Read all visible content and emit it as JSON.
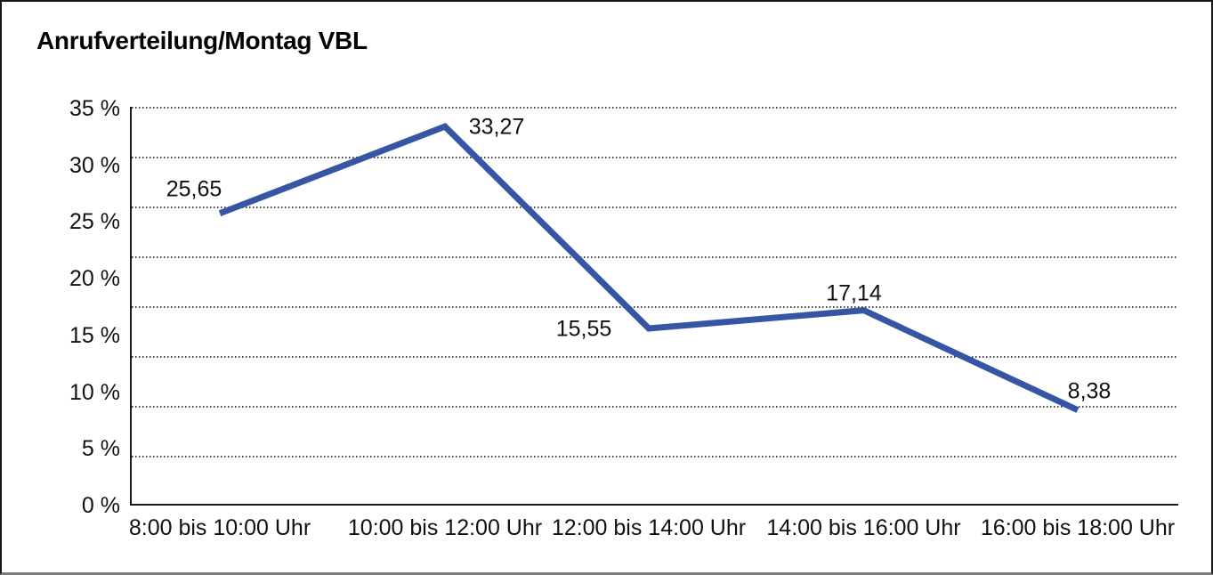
{
  "chart_data": {
    "type": "line",
    "title": "Anrufverteilung/Montag VBL",
    "categories": [
      "8:00 bis 10:00 Uhr",
      "10:00 bis 12:00 Uhr",
      "12:00 bis 14:00 Uhr",
      "14:00 bis 16:00 Uhr",
      "16:00 bis 18:00 Uhr"
    ],
    "values": [
      25.65,
      33.27,
      15.55,
      17.14,
      8.38
    ],
    "point_labels": [
      "25,65",
      "33,27",
      "15,55",
      "17,14",
      "8,38"
    ],
    "yticks": [
      "35 %",
      "30 %",
      "25 %",
      "20 %",
      "15 %",
      "10 %",
      "5 %",
      "0 %"
    ],
    "ylim": [
      0,
      35
    ],
    "unit": "%",
    "xlabel": "",
    "ylabel": "",
    "legend": "none",
    "grid": "horizontal-dotted",
    "line_color": "#3656A4",
    "axis_color": "#1A1A1A",
    "background": "#FFFFFF"
  }
}
